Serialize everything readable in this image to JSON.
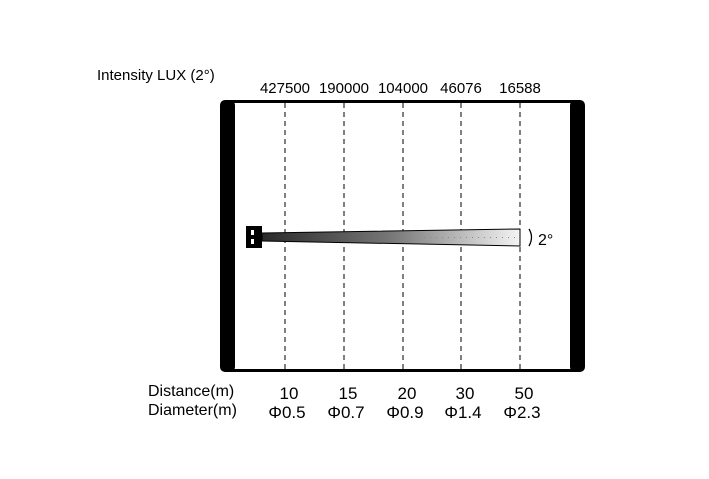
{
  "title": "Intensity LUX (2°)",
  "beam_angle_label": "2°",
  "distance_label": "Distance(m)",
  "diameter_label": "Diameter(m)",
  "columns": [
    {
      "lux": "427500",
      "distance": "10",
      "diameter": "Φ0.5"
    },
    {
      "lux": "190000",
      "distance": "15",
      "diameter": "Φ0.7"
    },
    {
      "lux": "104000",
      "distance": "20",
      "diameter": "Φ0.9"
    },
    {
      "lux": "46076",
      "distance": "30",
      "diameter": "Φ1.4"
    },
    {
      "lux": "16588",
      "distance": "50",
      "diameter": "Φ2.3"
    }
  ]
}
